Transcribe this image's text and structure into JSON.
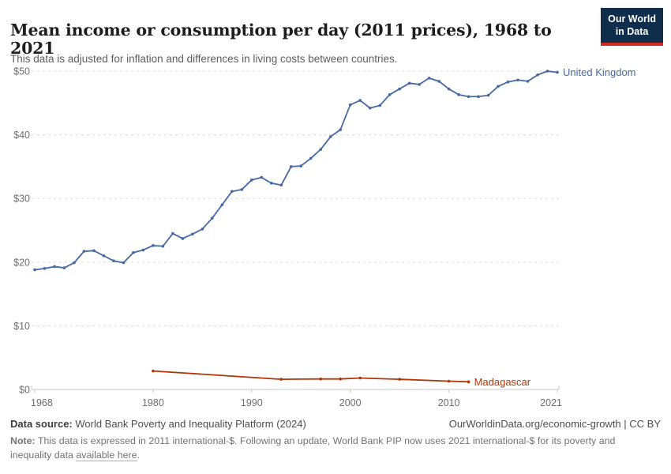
{
  "header": {
    "title": "Mean income or consumption per day (2011 prices), 1968 to 2021",
    "subtitle": "This data is adjusted for inflation and differences in living costs between countries.",
    "logo": {
      "line1": "Our World",
      "line2": "in Data",
      "bg_color": "#102d4c",
      "bar_color": "#d42b21"
    }
  },
  "chart_data": {
    "type": "line",
    "title": "Mean income or consumption per day (2011 prices), 1968 to 2021",
    "xlabel": "",
    "ylabel": "",
    "xlim": [
      1968,
      2021
    ],
    "ylim": [
      0,
      50
    ],
    "xticks": [
      1968,
      1980,
      1990,
      2000,
      2010,
      2021
    ],
    "yticks": [
      0,
      10,
      20,
      30,
      40,
      50
    ],
    "ytick_prefix": "$",
    "grid": "horizontal-dashed",
    "legend_position": "end-of-line-labels",
    "series": [
      {
        "name": "United Kingdom",
        "color": "#4669a5",
        "x": [
          1968,
          1969,
          1970,
          1971,
          1972,
          1973,
          1974,
          1975,
          1976,
          1977,
          1978,
          1979,
          1980,
          1981,
          1982,
          1983,
          1984,
          1985,
          1986,
          1987,
          1988,
          1989,
          1990,
          1991,
          1992,
          1993,
          1994,
          1995,
          1996,
          1997,
          1998,
          1999,
          2000,
          2001,
          2002,
          2003,
          2004,
          2005,
          2006,
          2007,
          2008,
          2009,
          2010,
          2011,
          2012,
          2013,
          2014,
          2015,
          2016,
          2017,
          2018,
          2019,
          2020,
          2021
        ],
        "values": [
          18.8,
          19.0,
          19.3,
          19.1,
          19.9,
          21.7,
          21.8,
          21.0,
          20.2,
          19.9,
          21.5,
          21.9,
          22.6,
          22.5,
          24.5,
          23.7,
          24.4,
          25.2,
          26.9,
          29.0,
          31.1,
          31.4,
          32.9,
          33.3,
          32.4,
          32.1,
          35.0,
          35.1,
          36.3,
          37.7,
          39.7,
          40.8,
          44.7,
          45.4,
          44.2,
          44.6,
          46.3,
          47.2,
          48.1,
          47.9,
          48.9,
          48.4,
          47.2,
          46.3,
          46.0,
          46.0,
          46.2,
          47.6,
          48.3,
          48.6,
          48.4,
          49.4,
          50.0,
          49.8
        ]
      },
      {
        "name": "Madagascar",
        "color": "#b13507",
        "x": [
          1980,
          1993,
          1997,
          1999,
          2001,
          2005,
          2010,
          2012
        ],
        "values": [
          2.9,
          1.6,
          1.65,
          1.65,
          1.8,
          1.6,
          1.3,
          1.2
        ]
      }
    ]
  },
  "footer": {
    "datasource_label": "Data source:",
    "datasource_value": " World Bank Poverty and Inequality Platform (2024)",
    "attribution": "OurWorldinData.org/economic-growth | CC BY",
    "note": {
      "label": "Note:",
      "before_link": " This data is expressed in 2011 international-$. Following an update, World Bank PIP now uses 2021 international-$ for its poverty and inequality data ",
      "link": "available here",
      "after": "."
    }
  }
}
